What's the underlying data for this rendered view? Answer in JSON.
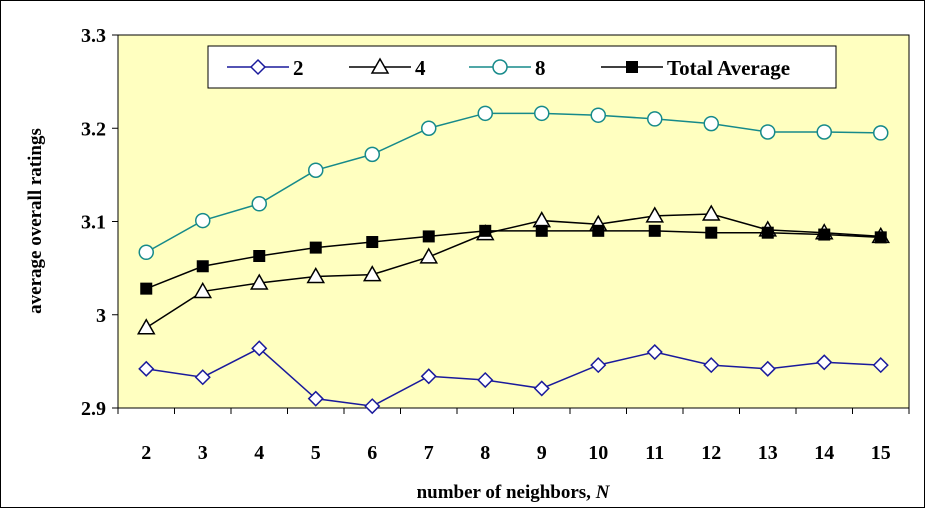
{
  "chart_data": {
    "type": "line",
    "title": "",
    "xlabel": "number of neighbors, ",
    "xlabel_var": "N",
    "ylabel": "average overall ratings",
    "x": [
      2,
      3,
      4,
      5,
      6,
      7,
      8,
      9,
      10,
      11,
      12,
      13,
      14,
      15
    ],
    "ylim": [
      2.9,
      3.3
    ],
    "yticks": [
      "2.9",
      "3",
      "3.1",
      "3.2",
      "3.3"
    ],
    "legend_position": "top",
    "plot_background": "#ffffc0",
    "series": [
      {
        "name": "2",
        "marker": "diamond-open",
        "color": "#1a1a9c",
        "values": [
          2.942,
          2.933,
          2.964,
          2.91,
          2.902,
          2.934,
          2.93,
          2.921,
          2.946,
          2.96,
          2.946,
          2.942,
          2.949,
          2.946
        ]
      },
      {
        "name": "4",
        "marker": "triangle-open",
        "color": "#000000",
        "values": [
          2.986,
          3.025,
          3.034,
          3.041,
          3.043,
          3.062,
          3.087,
          3.101,
          3.097,
          3.106,
          3.108,
          3.091,
          3.088,
          3.084
        ]
      },
      {
        "name": "8",
        "marker": "circle-open",
        "color": "#168a8a",
        "values": [
          3.067,
          3.101,
          3.119,
          3.155,
          3.172,
          3.2,
          3.216,
          3.216,
          3.214,
          3.21,
          3.205,
          3.196,
          3.196,
          3.195
        ]
      },
      {
        "name": "Total Average",
        "marker": "square-filled",
        "color": "#000000",
        "values": [
          3.028,
          3.052,
          3.063,
          3.072,
          3.078,
          3.084,
          3.09,
          3.09,
          3.09,
          3.09,
          3.088,
          3.088,
          3.086,
          3.083
        ]
      }
    ]
  }
}
